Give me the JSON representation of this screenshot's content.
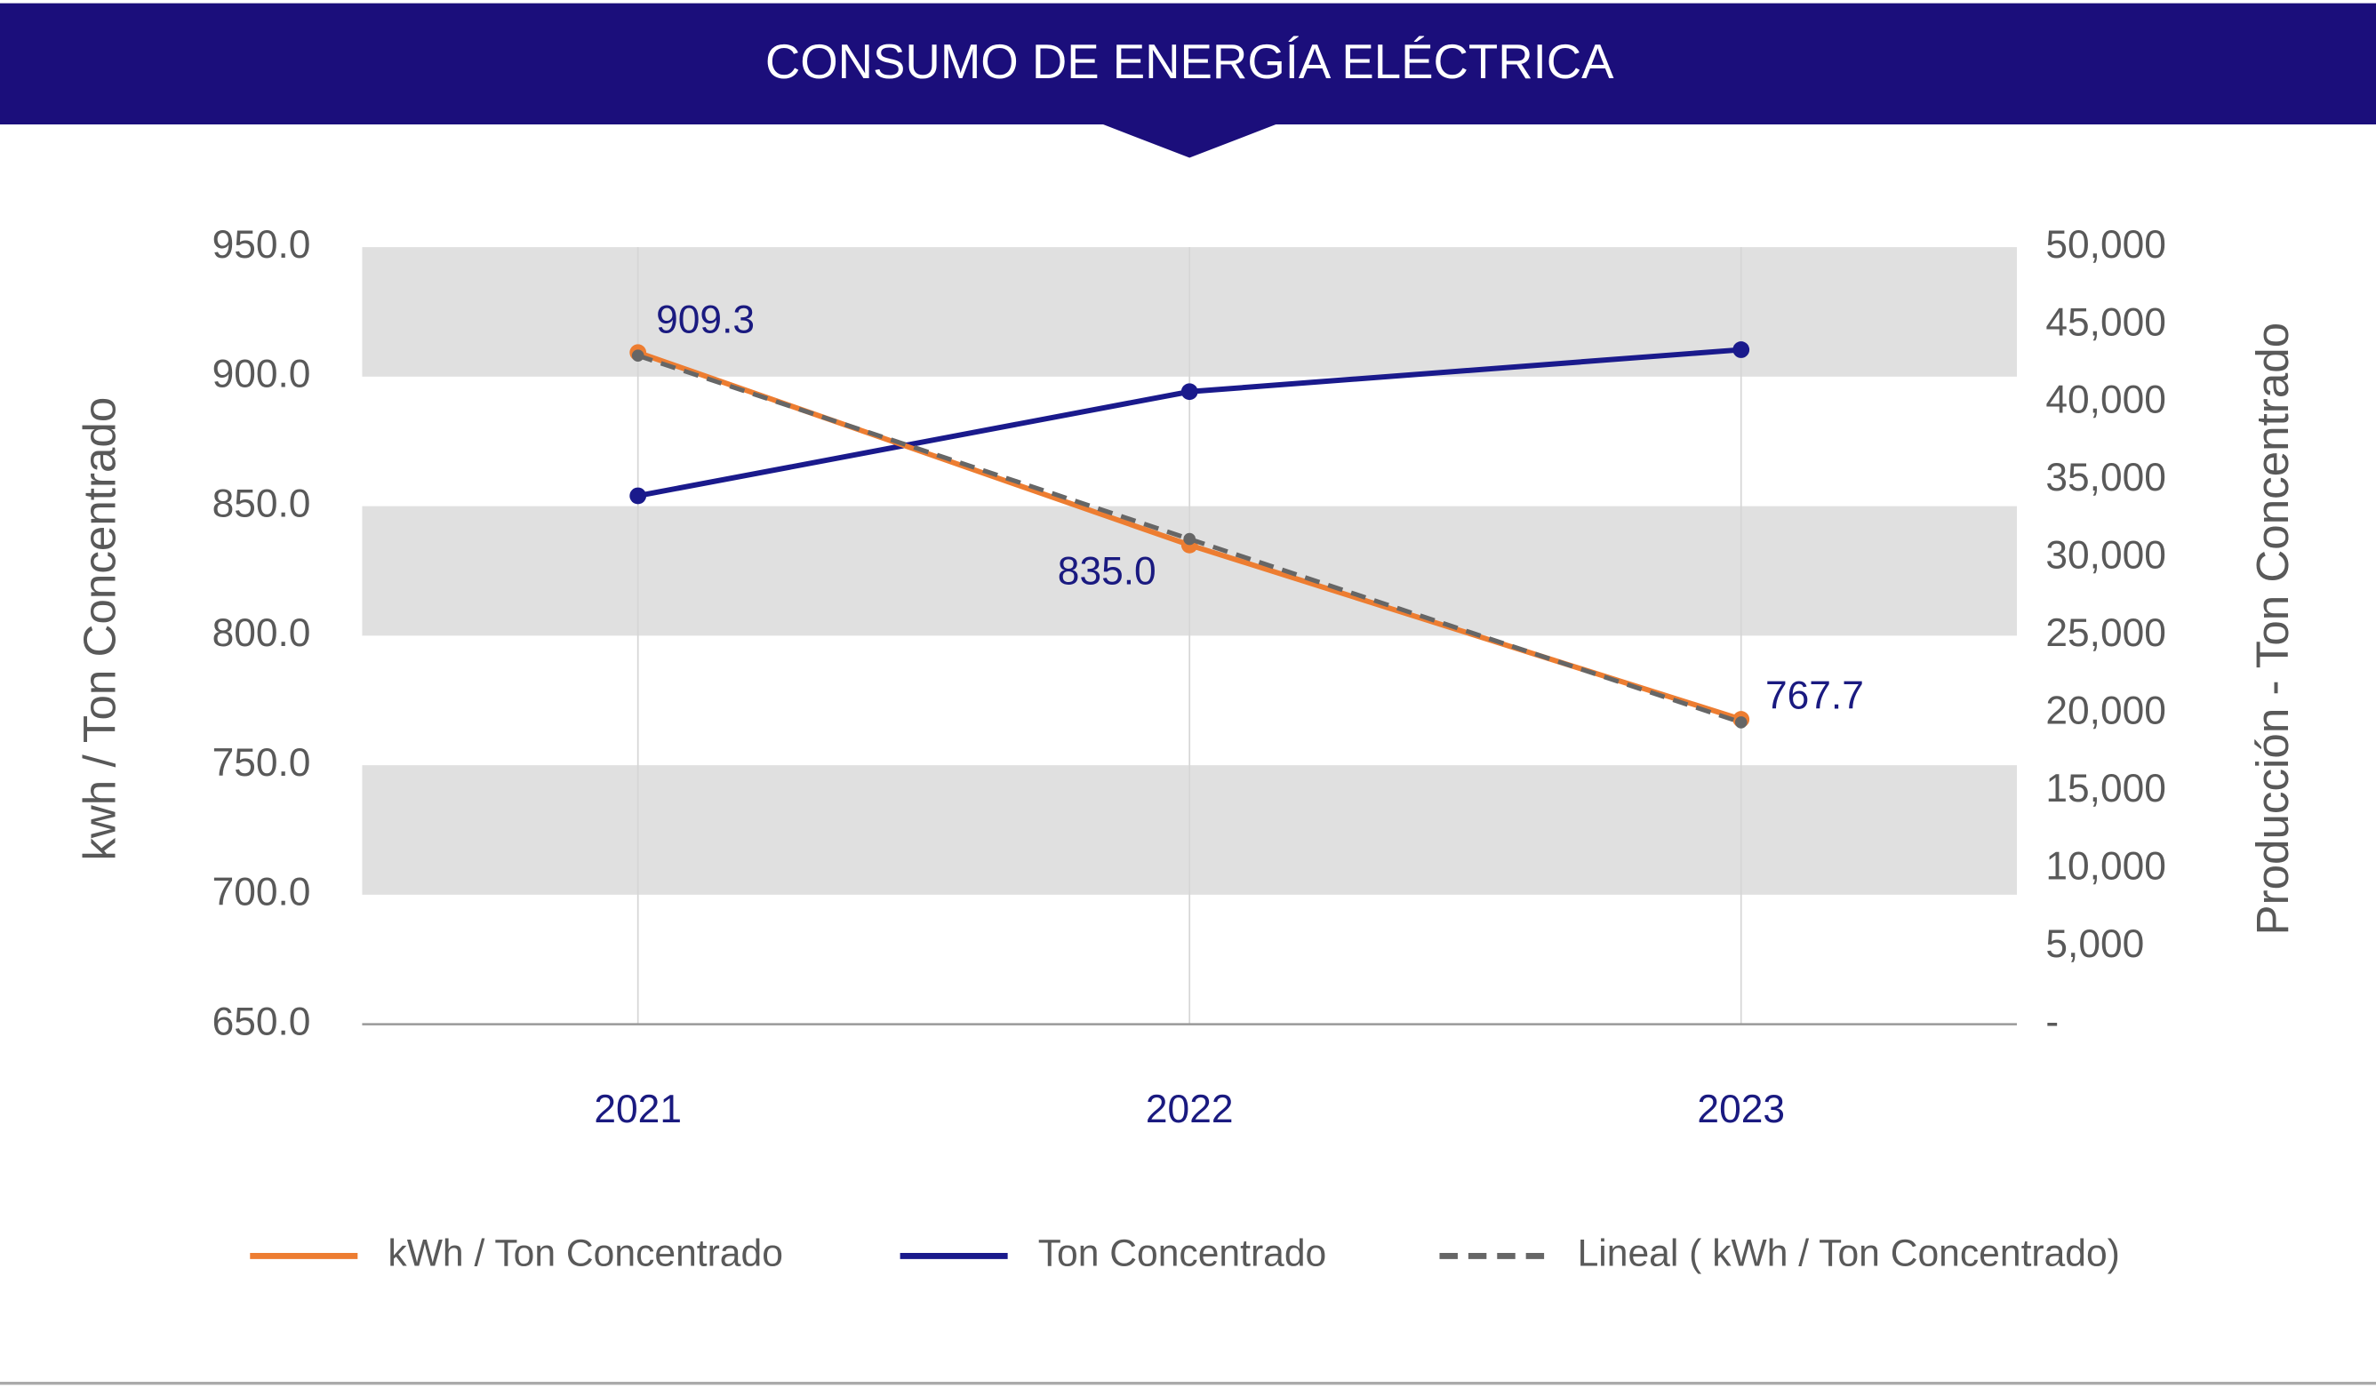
{
  "chart_data": {
    "type": "line",
    "title": "CONSUMO DE ENERGÍA ELÉCTRICA",
    "categories": [
      "2021",
      "2022",
      "2023"
    ],
    "ylabel": "kwh / Ton Concentrado",
    "y2label": "Producción - Ton Concentrado",
    "ylim": [
      650,
      950
    ],
    "yticks": [
      {
        "value": 650,
        "label": "650.0"
      },
      {
        "value": 700,
        "label": "700.0"
      },
      {
        "value": 750,
        "label": "750.0"
      },
      {
        "value": 800,
        "label": "800.0"
      },
      {
        "value": 850,
        "label": "850.0"
      },
      {
        "value": 900,
        "label": "900.0"
      },
      {
        "value": 950,
        "label": "950.0"
      }
    ],
    "y2lim": [
      0,
      50000
    ],
    "y2ticks": [
      {
        "value": 0,
        "label": "-"
      },
      {
        "value": 5000,
        "label": "5,000"
      },
      {
        "value": 10000,
        "label": "10,000"
      },
      {
        "value": 15000,
        "label": "15,000"
      },
      {
        "value": 20000,
        "label": "20,000"
      },
      {
        "value": 25000,
        "label": "25,000"
      },
      {
        "value": 30000,
        "label": "30,000"
      },
      {
        "value": 35000,
        "label": "35,000"
      },
      {
        "value": 40000,
        "label": "40,000"
      },
      {
        "value": 45000,
        "label": "45,000"
      },
      {
        "value": 50000,
        "label": "50,000"
      }
    ],
    "grid": "bands",
    "legend": "bottom",
    "series": [
      {
        "name": "kWh / Ton Concentrado",
        "color": "#ed7d31",
        "values": [
          909.3,
          835.0,
          767.7
        ],
        "value_labels": [
          "909.3",
          "835.0",
          "767.7"
        ]
      },
      {
        "name": "Ton Concentrado",
        "color": "#1a1a8c",
        "axis": "y2",
        "values": [
          34000,
          40700,
          43400
        ]
      },
      {
        "name": "Lineal ( kWh / Ton Concentrado)",
        "color": "#666666",
        "dashed": true,
        "values": [
          908.13,
          837.33,
          766.53
        ]
      }
    ]
  }
}
